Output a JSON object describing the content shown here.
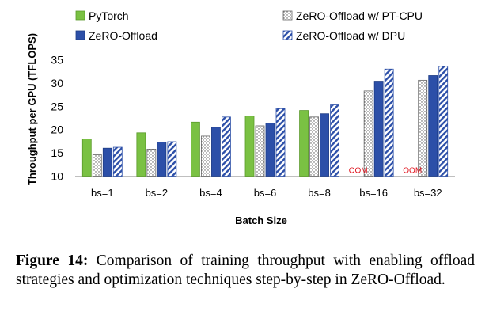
{
  "chart_data": {
    "type": "bar",
    "title": "",
    "xlabel": "Batch Size",
    "ylabel": "Throughput per GPU (TFLOPS)",
    "ylim": [
      10,
      35
    ],
    "yticks": [
      10,
      15,
      20,
      25,
      30,
      35
    ],
    "categories": [
      "bs=1",
      "bs=2",
      "bs=4",
      "bs=6",
      "bs=8",
      "bs=16",
      "bs=32"
    ],
    "legend_position": "top",
    "grid": false,
    "series": [
      {
        "name": "PyTorch",
        "values": [
          18.0,
          19.3,
          21.6,
          22.9,
          24.1,
          null,
          null
        ],
        "color": "#7ac143",
        "pattern": "solid"
      },
      {
        "name": "ZeRO-Offload w/ PT-CPU",
        "values": [
          14.6,
          15.8,
          18.6,
          20.8,
          22.7,
          28.3,
          30.6
        ],
        "color": "#ffffff",
        "pattern": "dots"
      },
      {
        "name": "ZeRO-Offload",
        "values": [
          16.0,
          17.3,
          20.5,
          21.4,
          23.4,
          30.4,
          31.6
        ],
        "color": "#2c4fa8",
        "pattern": "solid"
      },
      {
        "name": "ZeRO-Offload w/ DPU",
        "values": [
          16.2,
          17.4,
          22.7,
          24.5,
          25.3,
          33.0,
          33.6
        ],
        "color": "#2c4fa8",
        "pattern": "diagonal"
      }
    ],
    "annotations": [
      {
        "category": "bs=16",
        "series": "PyTorch",
        "text": "OOM",
        "color": "#e0141e"
      },
      {
        "category": "bs=32",
        "series": "PyTorch",
        "text": "OOM",
        "color": "#e0141e"
      }
    ]
  },
  "caption": {
    "label": "Figure 14:",
    "text": "Comparison of training throughput with enabling offload strategies and optimization techniques step-by-step in ZeRO-Offload."
  }
}
